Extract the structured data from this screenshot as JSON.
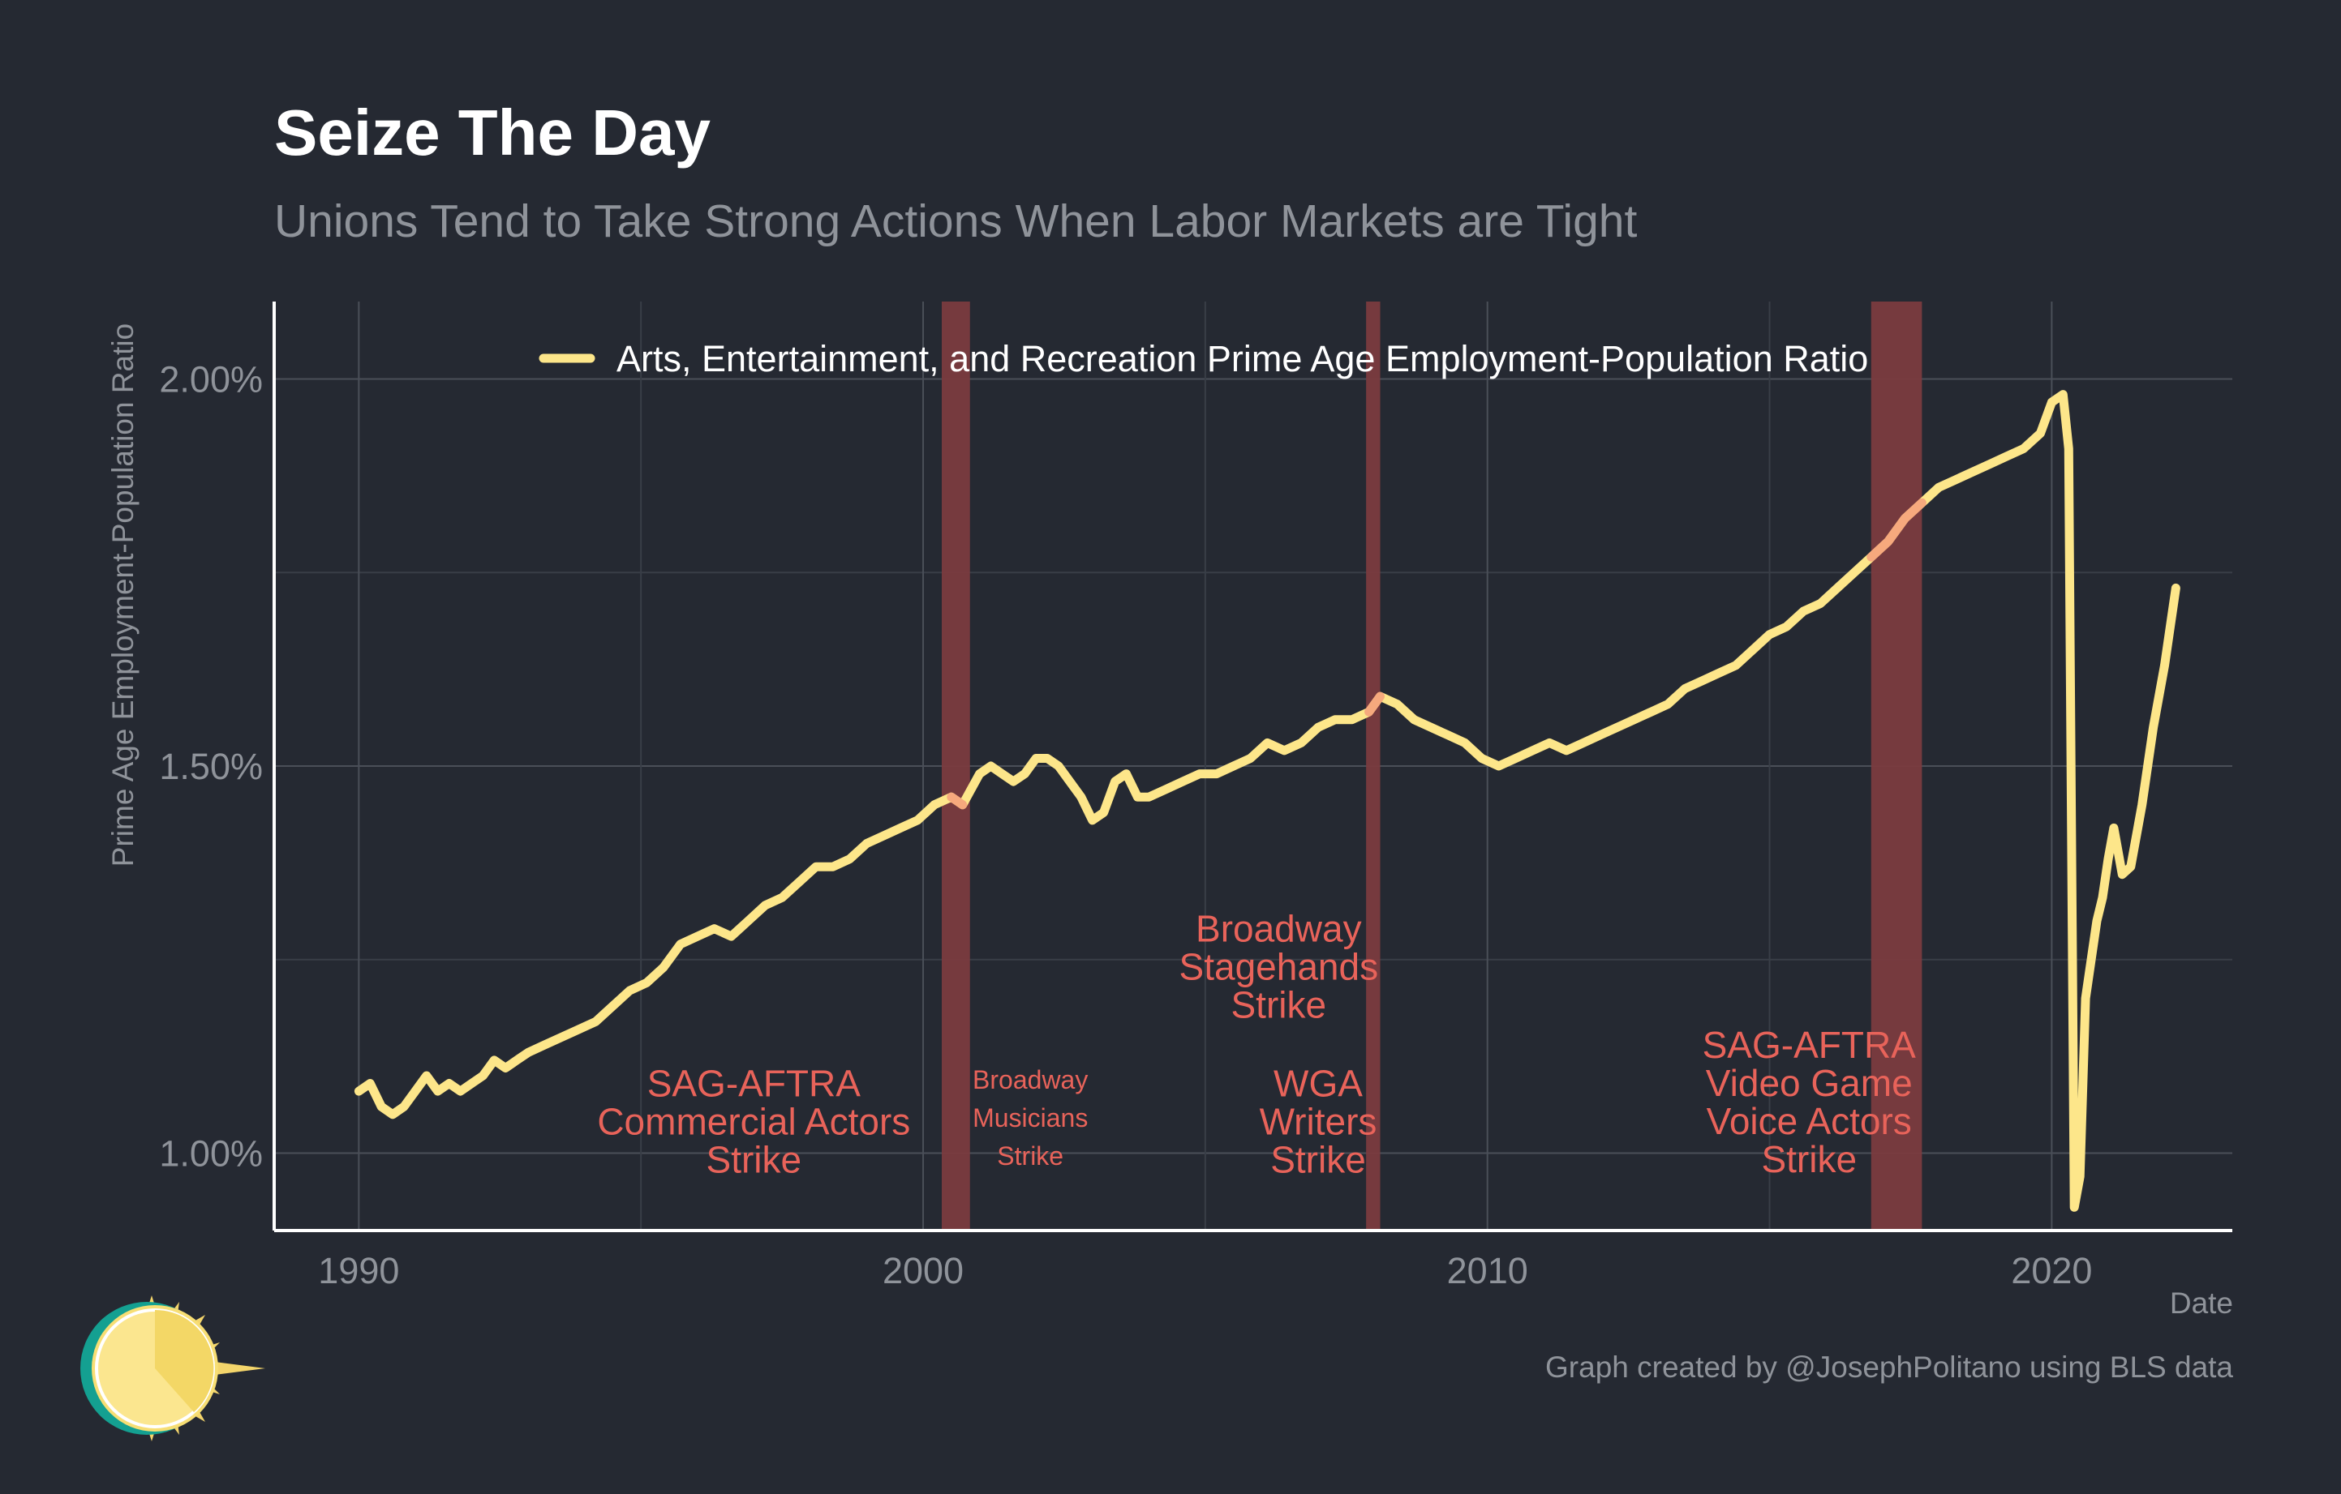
{
  "chart_data": {
    "type": "line",
    "title": "Seize The Day",
    "subtitle": "Unions Tend to Take Strong Actions When Labor Markets are Tight",
    "xlabel": "Date",
    "ylabel": "Prime Age Employment-Population Ratio",
    "xlim": [
      1988.5,
      2023.2
    ],
    "ylim": [
      0.9,
      2.1
    ],
    "x_ticks": [
      {
        "value": 1990,
        "label": "1990"
      },
      {
        "value": 2000,
        "label": "2000"
      },
      {
        "value": 2010,
        "label": "2010"
      },
      {
        "value": 2020,
        "label": "2020"
      }
    ],
    "y_ticks": [
      {
        "value": 1.0,
        "label": "1.00%"
      },
      {
        "value": 1.5,
        "label": "1.50%"
      },
      {
        "value": 2.0,
        "label": "2.00%"
      }
    ],
    "y_minor_gridlines": [
      1.25,
      1.75
    ],
    "x_minor_gridlines": [
      1995,
      2005,
      2015
    ],
    "grid": true,
    "legend_position": "top",
    "series": [
      {
        "name": "Arts, Entertainment, and Recreation Prime Age Employment-Population Ratio",
        "color": "#fde68a",
        "points": [
          [
            1990.0,
            1.08
          ],
          [
            1990.2,
            1.09
          ],
          [
            1990.4,
            1.06
          ],
          [
            1990.6,
            1.05
          ],
          [
            1990.8,
            1.06
          ],
          [
            1991.0,
            1.08
          ],
          [
            1991.2,
            1.1
          ],
          [
            1991.4,
            1.08
          ],
          [
            1991.6,
            1.09
          ],
          [
            1991.8,
            1.08
          ],
          [
            1992.0,
            1.09
          ],
          [
            1992.2,
            1.1
          ],
          [
            1992.4,
            1.12
          ],
          [
            1992.6,
            1.11
          ],
          [
            1992.8,
            1.12
          ],
          [
            1993.0,
            1.13
          ],
          [
            1993.3,
            1.14
          ],
          [
            1993.6,
            1.15
          ],
          [
            1993.9,
            1.16
          ],
          [
            1994.2,
            1.17
          ],
          [
            1994.5,
            1.19
          ],
          [
            1994.8,
            1.21
          ],
          [
            1995.1,
            1.22
          ],
          [
            1995.4,
            1.24
          ],
          [
            1995.7,
            1.27
          ],
          [
            1996.0,
            1.28
          ],
          [
            1996.3,
            1.29
          ],
          [
            1996.6,
            1.28
          ],
          [
            1996.9,
            1.3
          ],
          [
            1997.2,
            1.32
          ],
          [
            1997.5,
            1.33
          ],
          [
            1997.8,
            1.35
          ],
          [
            1998.1,
            1.37
          ],
          [
            1998.4,
            1.37
          ],
          [
            1998.7,
            1.38
          ],
          [
            1999.0,
            1.4
          ],
          [
            1999.3,
            1.41
          ],
          [
            1999.6,
            1.42
          ],
          [
            1999.9,
            1.43
          ],
          [
            2000.2,
            1.45
          ],
          [
            2000.5,
            1.46
          ],
          [
            2000.7,
            1.45
          ],
          [
            2001.0,
            1.49
          ],
          [
            2001.2,
            1.5
          ],
          [
            2001.4,
            1.49
          ],
          [
            2001.6,
            1.48
          ],
          [
            2001.8,
            1.49
          ],
          [
            2002.0,
            1.51
          ],
          [
            2002.2,
            1.51
          ],
          [
            2002.4,
            1.5
          ],
          [
            2002.6,
            1.48
          ],
          [
            2002.8,
            1.46
          ],
          [
            2003.0,
            1.43
          ],
          [
            2003.2,
            1.44
          ],
          [
            2003.4,
            1.48
          ],
          [
            2003.6,
            1.49
          ],
          [
            2003.8,
            1.46
          ],
          [
            2004.0,
            1.46
          ],
          [
            2004.3,
            1.47
          ],
          [
            2004.6,
            1.48
          ],
          [
            2004.9,
            1.49
          ],
          [
            2005.2,
            1.49
          ],
          [
            2005.5,
            1.5
          ],
          [
            2005.8,
            1.51
          ],
          [
            2006.1,
            1.53
          ],
          [
            2006.4,
            1.52
          ],
          [
            2006.7,
            1.53
          ],
          [
            2007.0,
            1.55
          ],
          [
            2007.3,
            1.56
          ],
          [
            2007.6,
            1.56
          ],
          [
            2007.9,
            1.57
          ],
          [
            2008.1,
            1.59
          ],
          [
            2008.4,
            1.58
          ],
          [
            2008.7,
            1.56
          ],
          [
            2009.0,
            1.55
          ],
          [
            2009.3,
            1.54
          ],
          [
            2009.6,
            1.53
          ],
          [
            2009.9,
            1.51
          ],
          [
            2010.2,
            1.5
          ],
          [
            2010.5,
            1.51
          ],
          [
            2010.8,
            1.52
          ],
          [
            2011.1,
            1.53
          ],
          [
            2011.4,
            1.52
          ],
          [
            2011.7,
            1.53
          ],
          [
            2012.0,
            1.54
          ],
          [
            2012.3,
            1.55
          ],
          [
            2012.6,
            1.56
          ],
          [
            2012.9,
            1.57
          ],
          [
            2013.2,
            1.58
          ],
          [
            2013.5,
            1.6
          ],
          [
            2013.8,
            1.61
          ],
          [
            2014.1,
            1.62
          ],
          [
            2014.4,
            1.63
          ],
          [
            2014.7,
            1.65
          ],
          [
            2015.0,
            1.67
          ],
          [
            2015.3,
            1.68
          ],
          [
            2015.6,
            1.7
          ],
          [
            2015.9,
            1.71
          ],
          [
            2016.2,
            1.73
          ],
          [
            2016.5,
            1.75
          ],
          [
            2016.8,
            1.77
          ],
          [
            2017.1,
            1.79
          ],
          [
            2017.4,
            1.82
          ],
          [
            2017.7,
            1.84
          ],
          [
            2018.0,
            1.86
          ],
          [
            2018.3,
            1.87
          ],
          [
            2018.6,
            1.88
          ],
          [
            2018.9,
            1.89
          ],
          [
            2019.2,
            1.9
          ],
          [
            2019.5,
            1.91
          ],
          [
            2019.8,
            1.93
          ],
          [
            2020.0,
            1.97
          ],
          [
            2020.2,
            1.98
          ],
          [
            2020.3,
            1.91
          ],
          [
            2020.4,
            0.93
          ],
          [
            2020.5,
            0.97
          ],
          [
            2020.6,
            1.2
          ],
          [
            2020.8,
            1.3
          ],
          [
            2020.9,
            1.33
          ],
          [
            2021.0,
            1.38
          ],
          [
            2021.1,
            1.42
          ],
          [
            2021.25,
            1.36
          ],
          [
            2021.4,
            1.37
          ],
          [
            2021.6,
            1.45
          ],
          [
            2021.8,
            1.55
          ],
          [
            2022.0,
            1.63
          ],
          [
            2022.2,
            1.73
          ]
        ]
      }
    ],
    "highlight_color": "#f59e7a",
    "strike_bands": [
      {
        "start": 2000.33,
        "end": 2000.83
      },
      {
        "start": 2007.85,
        "end": 2008.1
      },
      {
        "start": 2016.8,
        "end": 2017.7
      }
    ],
    "band_color": "#7a3b3f",
    "annotations": [
      {
        "lines": [
          "SAG-AFTRA",
          "Commercial Actors",
          "Strike"
        ],
        "x": 1997.0,
        "y_top": 1.09,
        "size": "large"
      },
      {
        "lines": [
          "Broadway",
          "Musicians",
          "Strike"
        ],
        "x": 2001.9,
        "y_top": 1.095,
        "size": "small"
      },
      {
        "lines": [
          "Broadway",
          "Stagehands",
          "Strike"
        ],
        "x": 2006.3,
        "y_top": 1.29,
        "size": "large"
      },
      {
        "lines": [
          "WGA",
          "Writers",
          "Strike"
        ],
        "x": 2007.0,
        "y_top": 1.09,
        "size": "large"
      },
      {
        "lines": [
          "SAG-AFTRA",
          "Video Game",
          "Voice Actors",
          "Strike"
        ],
        "x": 2015.7,
        "y_top": 1.14,
        "size": "large"
      }
    ],
    "annotation_color": "#e8635a",
    "caption": "Graph created by @JosephPolitano using BLS data"
  }
}
